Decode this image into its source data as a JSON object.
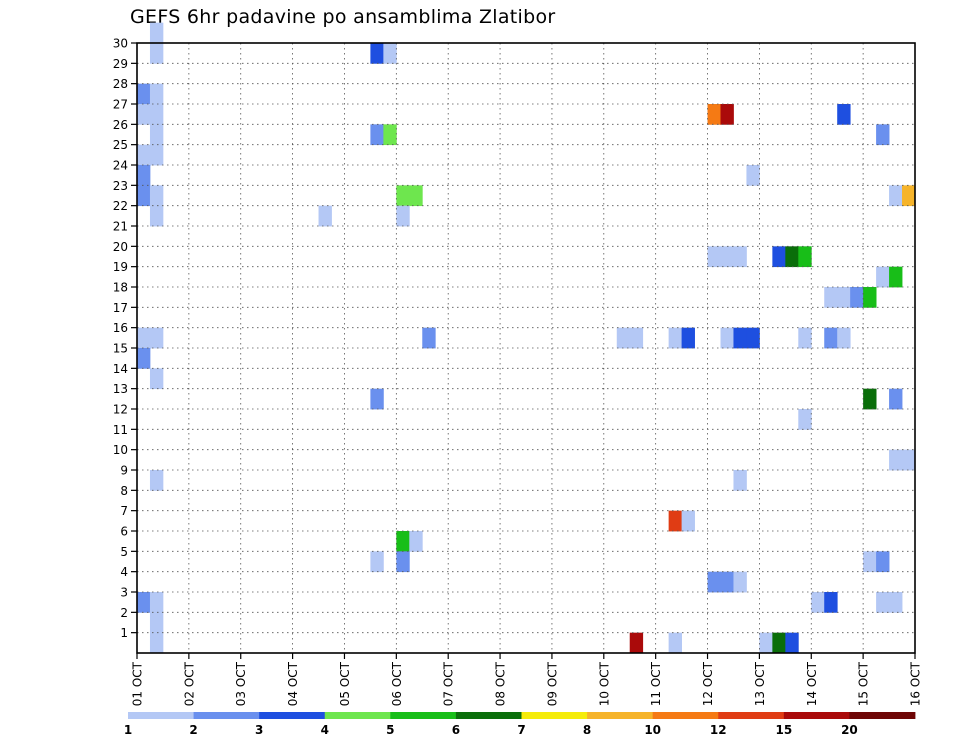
{
  "chart_data": {
    "type": "heatmap",
    "title": "GEFS 6hr padavine po ansamblima Zlatibor",
    "x_tick_labels": [
      "01 OCT",
      "02 OCT",
      "03 OCT",
      "04 OCT",
      "05 OCT",
      "06 OCT",
      "07 OCT",
      "08 OCT",
      "09 OCT",
      "10 OCT",
      "11 OCT",
      "12 OCT",
      "13 OCT",
      "14 OCT",
      "15 OCT",
      "16 OCT"
    ],
    "y_tick_labels": [
      1,
      2,
      3,
      4,
      5,
      6,
      7,
      8,
      9,
      10,
      11,
      12,
      13,
      14,
      15,
      16,
      17,
      18,
      19,
      20,
      21,
      22,
      23,
      24,
      25,
      26,
      27,
      28,
      29,
      30
    ],
    "xlim": [
      0,
      60
    ],
    "ylim": [
      0,
      30
    ],
    "grid": true,
    "colorbar": {
      "colors": [
        "#b4c8f5",
        "#6a90ee",
        "#1e4fe0",
        "#6ee64e",
        "#18be18",
        "#0a6e0a",
        "#f5ec0a",
        "#f6b42a",
        "#f57a14",
        "#e03c14",
        "#aa0a0a",
        "#6e0505"
      ],
      "labels": [
        "1",
        "2",
        "3",
        "4",
        "5",
        "6",
        "7",
        "8",
        "10",
        "12",
        "15",
        "20"
      ]
    },
    "cells": [
      {
        "step": 1,
        "member": 30,
        "value": 1.5
      },
      {
        "step": 1,
        "member": 29,
        "value": 1.5
      },
      {
        "step": 0,
        "member": 27,
        "value": 2.5
      },
      {
        "step": 1,
        "member": 27,
        "value": 1.5
      },
      {
        "step": 0,
        "member": 26,
        "value": 1.5
      },
      {
        "step": 1,
        "member": 26,
        "value": 1.5
      },
      {
        "step": 1,
        "member": 25,
        "value": 1.5
      },
      {
        "step": 0,
        "member": 24,
        "value": 1.5
      },
      {
        "step": 1,
        "member": 24,
        "value": 1.5
      },
      {
        "step": 0,
        "member": 23,
        "value": 2.5
      },
      {
        "step": 0,
        "member": 22,
        "value": 2.5
      },
      {
        "step": 1,
        "member": 22,
        "value": 1.5
      },
      {
        "step": 1,
        "member": 21,
        "value": 1.5
      },
      {
        "step": 0,
        "member": 15,
        "value": 1.5
      },
      {
        "step": 1,
        "member": 15,
        "value": 1.5
      },
      {
        "step": 0,
        "member": 14,
        "value": 2.5
      },
      {
        "step": 1,
        "member": 13,
        "value": 1.5
      },
      {
        "step": 1,
        "member": 8,
        "value": 1.5
      },
      {
        "step": 0,
        "member": 2,
        "value": 2.5
      },
      {
        "step": 1,
        "member": 2,
        "value": 1.5
      },
      {
        "step": 1,
        "member": 1,
        "value": 1.5
      },
      {
        "step": 1,
        "member": 0,
        "value": 1.5
      },
      {
        "step": 18,
        "member": 29,
        "value": 3.5
      },
      {
        "step": 19,
        "member": 29,
        "value": 1.5
      },
      {
        "step": 18,
        "member": 25,
        "value": 2.5
      },
      {
        "step": 19,
        "member": 25,
        "value": 4.5
      },
      {
        "step": 20,
        "member": 22,
        "value": 4.5
      },
      {
        "step": 21,
        "member": 22,
        "value": 4.5
      },
      {
        "step": 14,
        "member": 21,
        "value": 1.5
      },
      {
        "step": 20,
        "member": 21,
        "value": 1.5
      },
      {
        "step": 22,
        "member": 15,
        "value": 2.5
      },
      {
        "step": 18,
        "member": 12,
        "value": 2.5
      },
      {
        "step": 20,
        "member": 5,
        "value": 5.5
      },
      {
        "step": 21,
        "member": 5,
        "value": 1.5
      },
      {
        "step": 18,
        "member": 4,
        "value": 1.5
      },
      {
        "step": 20,
        "member": 4,
        "value": 2.5
      },
      {
        "step": 44,
        "member": 26,
        "value": 11
      },
      {
        "step": 45,
        "member": 26,
        "value": 16
      },
      {
        "step": 54,
        "member": 26,
        "value": 3.5
      },
      {
        "step": 57,
        "member": 25,
        "value": 2.5
      },
      {
        "step": 47,
        "member": 23,
        "value": 1.5
      },
      {
        "step": 58,
        "member": 22,
        "value": 1.5
      },
      {
        "step": 59,
        "member": 22,
        "value": 8
      },
      {
        "step": 44,
        "member": 19,
        "value": 1.5
      },
      {
        "step": 45,
        "member": 19,
        "value": 1.5
      },
      {
        "step": 46,
        "member": 19,
        "value": 1.5
      },
      {
        "step": 49,
        "member": 19,
        "value": 3.5
      },
      {
        "step": 50,
        "member": 19,
        "value": 6.5
      },
      {
        "step": 51,
        "member": 19,
        "value": 5.5
      },
      {
        "step": 57,
        "member": 18,
        "value": 1.5
      },
      {
        "step": 58,
        "member": 18,
        "value": 5.5
      },
      {
        "step": 53,
        "member": 17,
        "value": 1.5
      },
      {
        "step": 54,
        "member": 17,
        "value": 1.5
      },
      {
        "step": 55,
        "member": 17,
        "value": 2.5
      },
      {
        "step": 56,
        "member": 17,
        "value": 5.5
      },
      {
        "step": 37,
        "member": 15,
        "value": 1.5
      },
      {
        "step": 38,
        "member": 15,
        "value": 1.5
      },
      {
        "step": 41,
        "member": 15,
        "value": 1.5
      },
      {
        "step": 42,
        "member": 15,
        "value": 3.5
      },
      {
        "step": 45,
        "member": 15,
        "value": 1.5
      },
      {
        "step": 46,
        "member": 15,
        "value": 3.5
      },
      {
        "step": 47,
        "member": 15,
        "value": 3.5
      },
      {
        "step": 51,
        "member": 15,
        "value": 1.5
      },
      {
        "step": 53,
        "member": 15,
        "value": 2.5
      },
      {
        "step": 54,
        "member": 15,
        "value": 1.5
      },
      {
        "step": 56,
        "member": 12,
        "value": 6.5
      },
      {
        "step": 58,
        "member": 12,
        "value": 2.5
      },
      {
        "step": 51,
        "member": 11,
        "value": 1.5
      },
      {
        "step": 58,
        "member": 9,
        "value": 1.5
      },
      {
        "step": 59,
        "member": 9,
        "value": 1.5
      },
      {
        "step": 46,
        "member": 8,
        "value": 1.5
      },
      {
        "step": 41,
        "member": 6,
        "value": 13
      },
      {
        "step": 42,
        "member": 6,
        "value": 1.5
      },
      {
        "step": 56,
        "member": 4,
        "value": 1.5
      },
      {
        "step": 57,
        "member": 4,
        "value": 2.5
      },
      {
        "step": 44,
        "member": 3,
        "value": 2.5
      },
      {
        "step": 45,
        "member": 3,
        "value": 2.5
      },
      {
        "step": 46,
        "member": 3,
        "value": 1.5
      },
      {
        "step": 52,
        "member": 2,
        "value": 1.5
      },
      {
        "step": 53,
        "member": 2,
        "value": 3.5
      },
      {
        "step": 57,
        "member": 2,
        "value": 1.5
      },
      {
        "step": 58,
        "member": 2,
        "value": 1.5
      },
      {
        "step": 38,
        "member": 0,
        "value": 17
      },
      {
        "step": 41,
        "member": 0,
        "value": 1.5
      },
      {
        "step": 48,
        "member": 0,
        "value": 1.5
      },
      {
        "step": 49,
        "member": 0,
        "value": 6.5
      },
      {
        "step": 50,
        "member": 0,
        "value": 3.5
      }
    ]
  }
}
